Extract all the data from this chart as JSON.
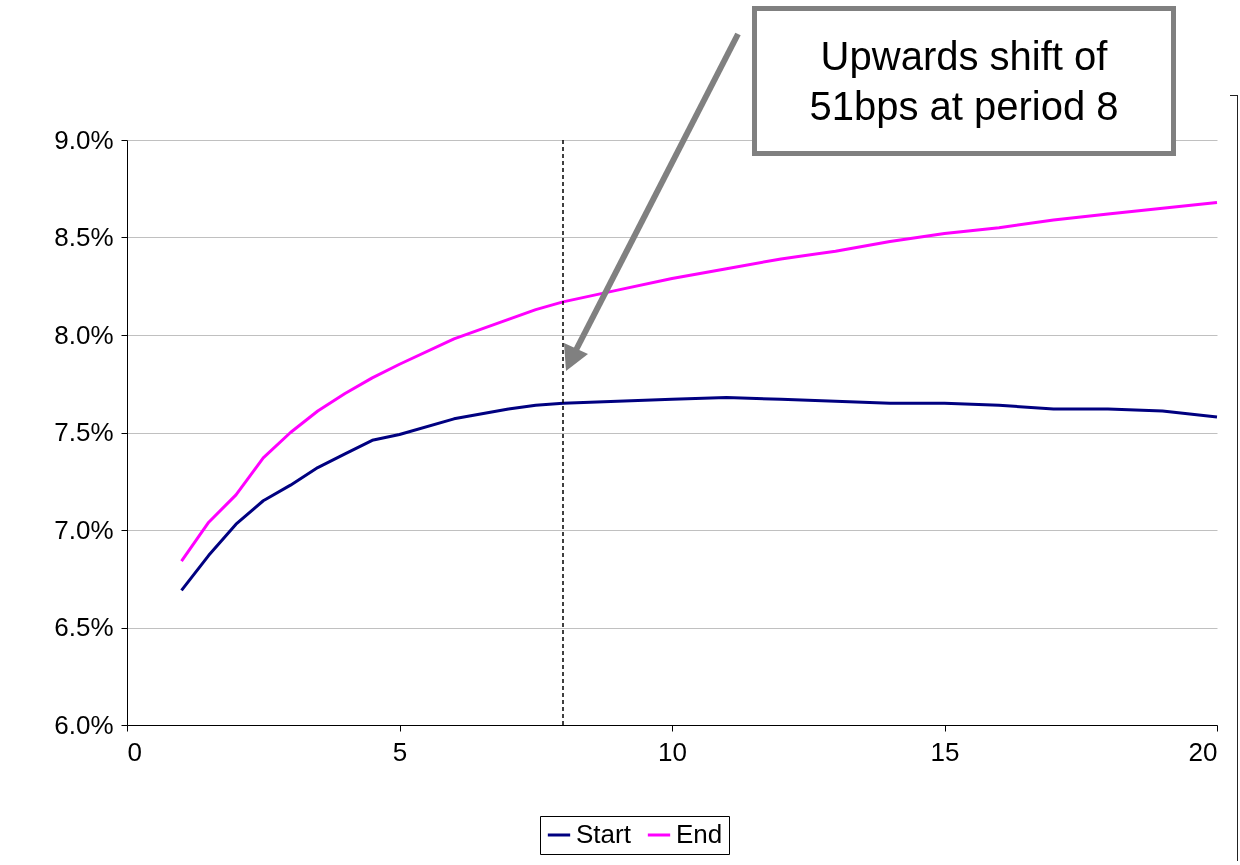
{
  "chart_data": {
    "type": "line",
    "x": [
      1,
      1.5,
      2,
      2.5,
      3,
      3.5,
      4,
      4.5,
      5,
      6,
      7,
      7.5,
      8,
      9,
      10,
      11,
      12,
      13,
      14,
      15,
      16,
      17,
      18,
      19,
      20
    ],
    "series": [
      {
        "name": "Start",
        "color": "#000080",
        "values": [
          6.69,
          6.87,
          7.03,
          7.15,
          7.23,
          7.32,
          7.39,
          7.46,
          7.49,
          7.57,
          7.62,
          7.64,
          7.65,
          7.66,
          7.67,
          7.68,
          7.67,
          7.66,
          7.65,
          7.65,
          7.64,
          7.62,
          7.62,
          7.61,
          7.58
        ]
      },
      {
        "name": "End",
        "color": "#ff00ff",
        "values": [
          6.84,
          7.04,
          7.18,
          7.37,
          7.5,
          7.61,
          7.7,
          7.78,
          7.85,
          7.98,
          8.08,
          8.13,
          8.17,
          8.23,
          8.29,
          8.34,
          8.39,
          8.43,
          8.48,
          8.52,
          8.55,
          8.59,
          8.62,
          8.65,
          8.68
        ]
      }
    ],
    "xlim": [
      0,
      20
    ],
    "xticks": [
      0,
      5,
      10,
      15,
      20
    ],
    "ylim": [
      6,
      9
    ],
    "yticks": [
      {
        "value": 6,
        "label": "6.0%"
      },
      {
        "value": 6.5,
        "label": "6.5%"
      },
      {
        "value": 7,
        "label": "7.0%"
      },
      {
        "value": 7.5,
        "label": "7.5%"
      },
      {
        "value": 8,
        "label": "8.0%"
      },
      {
        "value": 8.5,
        "label": "8.5%"
      },
      {
        "value": 9,
        "label": "9.0%"
      }
    ],
    "grid": "y",
    "legend": "bottom",
    "line_style": "solid",
    "marker": "none",
    "ref_lines": [
      {
        "axis": "x",
        "value": 8,
        "color": "#000000",
        "line_style": "dashed"
      }
    ],
    "annotations": [
      "Upwards shift of 51bps at period 8"
    ]
  }
}
